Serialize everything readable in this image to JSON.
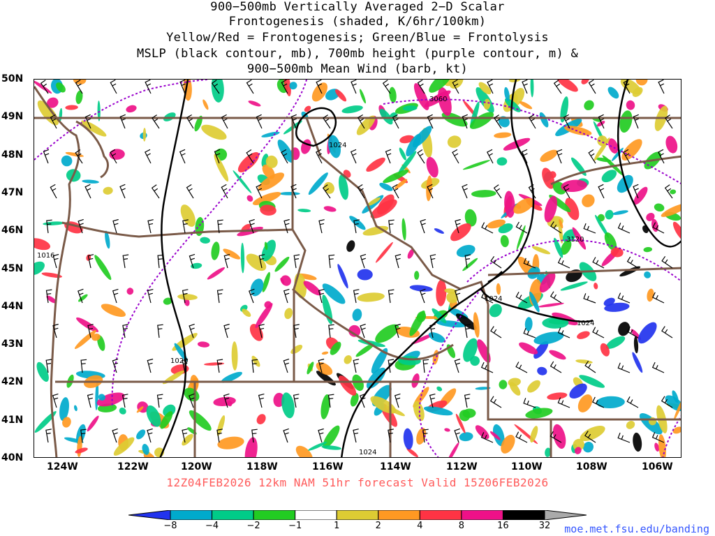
{
  "title": {
    "line1": "900−500mb Vertically Averaged 2−D Scalar",
    "line2": "Frontogenesis (shaded, K/6hr/100km)",
    "line3": "Yellow/Red = Frontogenesis;  Green/Blue = Frontolysis",
    "line4": "MSLP (black contour, mb), 700mb height (purple contour, m) &",
    "line5": "900−500mb Mean Wind (barb, kt)"
  },
  "axes": {
    "latitudes": [
      "50N",
      "49N",
      "48N",
      "47N",
      "46N",
      "45N",
      "44N",
      "43N",
      "42N",
      "41N",
      "40N"
    ],
    "longitudes": [
      "124W",
      "122W",
      "120W",
      "118W",
      "116W",
      "114W",
      "112W",
      "110W",
      "108W",
      "106W"
    ]
  },
  "contour_labels": {
    "mslp": [
      "1016",
      "1020",
      "1024",
      "1024",
      "1024",
      "1024"
    ],
    "height": [
      "3060",
      "3120"
    ]
  },
  "footer": {
    "forecast": "12Z04FEB2026 12km NAM 51hr forecast Valid 15Z06FEB2026",
    "url": "moe.met.fsu.edu/banding"
  },
  "colorbar": {
    "labels": [
      "−8",
      "−4",
      "−2",
      "−1",
      "1",
      "2",
      "4",
      "8",
      "16",
      "32"
    ],
    "colors": [
      "#2233ee",
      "#00aacc",
      "#00cc88",
      "#22cc22",
      "#ffffff",
      "#ddcc33",
      "#ff9922",
      "#ff3344",
      "#ee1188",
      "#000000",
      "#aaaaaa"
    ]
  },
  "colors": {
    "state_borders": "#7a5a48",
    "mslp": "#000000",
    "height": "#9900cc",
    "footer": "#ff5a5a"
  }
}
